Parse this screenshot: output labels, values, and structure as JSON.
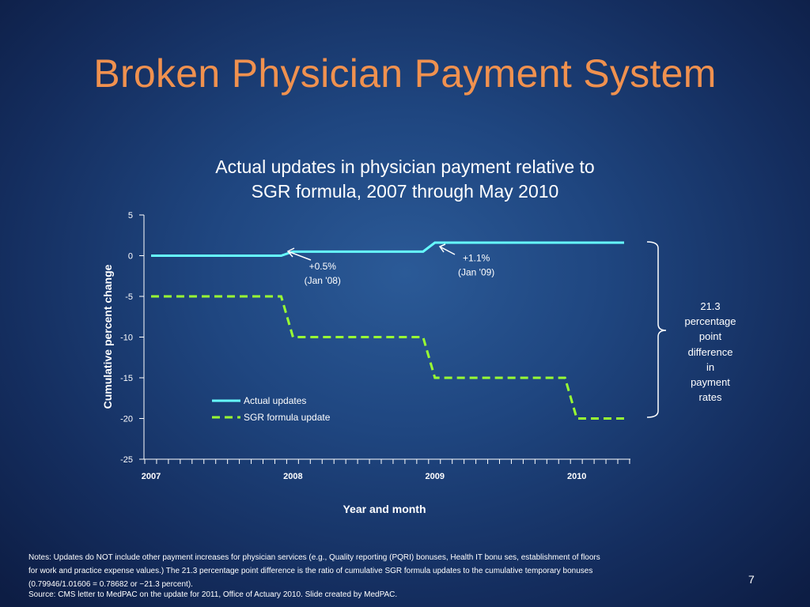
{
  "slide": {
    "title": "Broken Physician Payment System",
    "page_number": "7",
    "notes_lines": [
      "Notes:  Updates do NOT include other payment increases for physician services (e.g., Quality reporting (PQRI) bonuses, Health IT bonu ses, establishment of floors",
      "for work and practice expense values.)  The 21.3 percentage point difference is the ratio of cumulative SGR formula updates to the cumulative temporary bonuses",
      "(0.79946/1.01606 = 0.78682 or −21.3 percent)."
    ],
    "source": "Source: CMS letter to MedPAC on the update for 2011, Office of Actuary 2010.   Slide created by MedPAC."
  },
  "chart_data": {
    "type": "line",
    "title_lines": [
      "Actual updates in physician payment relative to",
      "SGR formula, 2007 through May 2010"
    ],
    "xlabel": "Year and month",
    "ylabel": "Cumulative percent change",
    "ylim": [
      -25,
      5
    ],
    "yticks": [
      "5",
      "0",
      "-5",
      "-10",
      "-15",
      "-20",
      "-25"
    ],
    "xlim": [
      0,
      41
    ],
    "x_tick_labels": [
      {
        "label": "2007",
        "month_index": 0
      },
      {
        "label": "2008",
        "month_index": 12
      },
      {
        "label": "2009",
        "month_index": 24
      },
      {
        "label": "2010",
        "month_index": 36
      }
    ],
    "x_minor_tick_count": 42,
    "series": [
      {
        "name": "Actual updates",
        "style": "solid",
        "color": "#66ffff",
        "points": [
          [
            0,
            0
          ],
          [
            11,
            0
          ],
          [
            12,
            0.5
          ],
          [
            23,
            0.5
          ],
          [
            24,
            1.6
          ],
          [
            40,
            1.6
          ]
        ]
      },
      {
        "name": "SGR formula update",
        "style": "dashed",
        "color": "#99ff33",
        "points": [
          [
            0,
            -5
          ],
          [
            11,
            -5
          ],
          [
            12,
            -10
          ],
          [
            23,
            -10
          ],
          [
            24,
            -15
          ],
          [
            35,
            -15
          ],
          [
            36,
            -20
          ],
          [
            40,
            -20
          ]
        ]
      }
    ],
    "annotations": [
      {
        "lines": [
          "+0.5%",
          "(Jan '08)"
        ],
        "x": 14.5,
        "y": -1.7
      },
      {
        "lines": [
          "+1.1%",
          "(Jan '09)"
        ],
        "x": 27.5,
        "y": -0.7
      }
    ],
    "bracket_label_lines": [
      "21.3",
      "percentage",
      "point",
      "difference",
      "in",
      "payment",
      "rates"
    ],
    "legend": "lower-center"
  },
  "colors": {
    "title": "#f0914f",
    "actual_line": "#66ffff",
    "sgr_line": "#99ff33",
    "text": "#ffffff"
  }
}
